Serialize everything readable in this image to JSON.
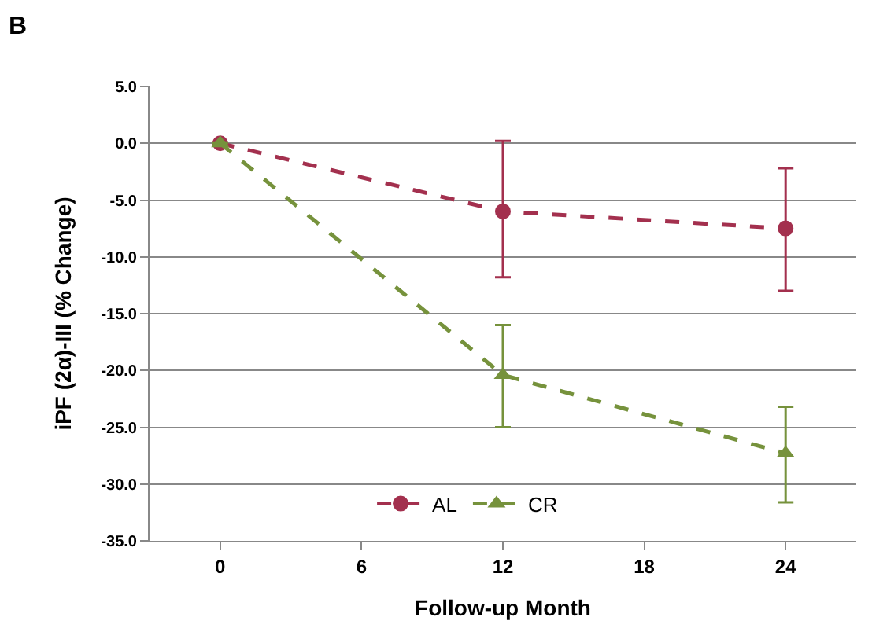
{
  "chart_data": {
    "type": "line",
    "title": "B",
    "xlabel": "Follow-up Month",
    "ylabel": "iPF (2α)-III (% Change)",
    "x": [
      0,
      12,
      24
    ],
    "series": [
      {
        "name": "AL",
        "color": "#a3304e",
        "marker": "circle",
        "values": [
          0.0,
          -6.0,
          -7.5
        ],
        "errors": [
          null,
          [
            -11.8,
            0.2
          ],
          [
            -13.0,
            -2.2
          ]
        ]
      },
      {
        "name": "CR",
        "color": "#76923c",
        "marker": "triangle",
        "values": [
          0.0,
          -20.4,
          -27.3
        ],
        "errors": [
          null,
          [
            -25.0,
            -16.0
          ],
          [
            -31.6,
            -23.2
          ]
        ]
      }
    ],
    "xlim": [
      -3,
      27
    ],
    "xticks": [
      0,
      6,
      12,
      18,
      24
    ],
    "ylim": [
      -35,
      5
    ],
    "yticks": [
      {
        "value": 5,
        "label": "5.0"
      },
      {
        "value": 0,
        "label": "0.0"
      },
      {
        "value": -5,
        "label": "-5.0"
      },
      {
        "value": -10,
        "label": "-10.0"
      },
      {
        "value": -15,
        "label": "-15.0"
      },
      {
        "value": -20,
        "label": "-20.0"
      },
      {
        "value": -25,
        "label": "-25.0"
      },
      {
        "value": -30,
        "label": "-30.0"
      },
      {
        "value": -35,
        "label": "-35.0"
      }
    ],
    "grid": "y",
    "legend": "bottom",
    "line_style": "dashed"
  }
}
